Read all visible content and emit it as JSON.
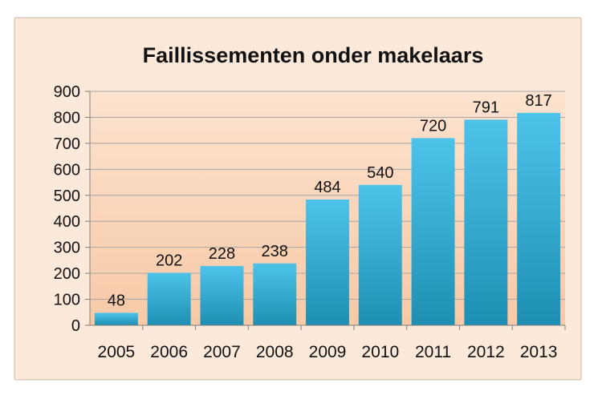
{
  "chart_data": {
    "type": "bar",
    "title": "Faillissementen onder makelaars",
    "xlabel": "",
    "ylabel": "",
    "categories": [
      "2005",
      "2006",
      "2007",
      "2008",
      "2009",
      "2010",
      "2011",
      "2012",
      "2013"
    ],
    "values": [
      48,
      202,
      228,
      238,
      484,
      540,
      720,
      791,
      817
    ],
    "ylim": [
      0,
      900
    ],
    "yticks": [
      "0",
      "100",
      "200",
      "300",
      "400",
      "500",
      "600",
      "700",
      "800",
      "900"
    ],
    "grid": true,
    "legend": "none",
    "colors": {
      "bar_top": "#4ec3ea",
      "bar_bottom": "#1e8fb3",
      "plot_top": "#fde3cf",
      "plot_bottom": "#f7c9a6",
      "frame_background": "#fde9d9",
      "gridline": "#a6a6a6"
    }
  }
}
